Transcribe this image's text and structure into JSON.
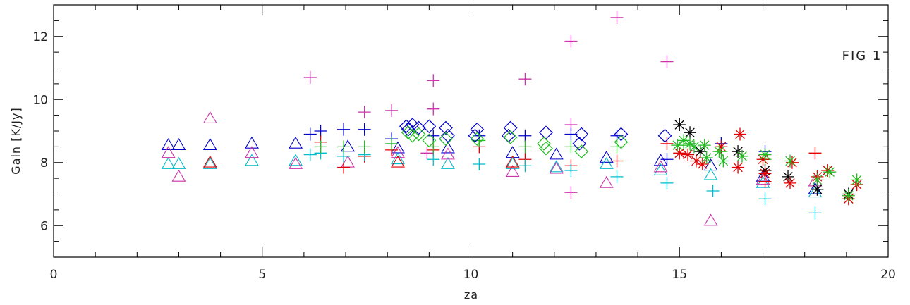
{
  "chart_data": {
    "type": "scatter",
    "title": "",
    "xlabel": "za",
    "ylabel": "Gain [K/Jy]",
    "xlim": [
      0,
      20
    ],
    "ylim": [
      5,
      13
    ],
    "x_ticks": [
      0,
      5,
      10,
      15,
      20
    ],
    "y_ticks": [
      6,
      8,
      10,
      12
    ],
    "grid": false,
    "annotations": [
      {
        "text": "FIG   1"
      }
    ],
    "colors": {
      "blue": "#0000cc",
      "red": "#e00000",
      "green": "#22bb22",
      "magenta": "#cc33aa",
      "cyan": "#00bbcc",
      "black": "#000000",
      "axis": "#000000"
    },
    "series": [
      {
        "marker": "triangle",
        "color": "blue",
        "points": [
          [
            2.75,
            8.55
          ],
          [
            3.0,
            8.55
          ],
          [
            3.75,
            8.55
          ],
          [
            4.75,
            8.6
          ],
          [
            5.8,
            8.6
          ],
          [
            7.05,
            8.5
          ],
          [
            8.25,
            8.45
          ],
          [
            9.45,
            8.45
          ],
          [
            11.0,
            8.3
          ],
          [
            12.05,
            8.25
          ],
          [
            13.25,
            8.15
          ],
          [
            14.55,
            8.05
          ],
          [
            15.75,
            7.9
          ],
          [
            17.0,
            7.55
          ],
          [
            18.25,
            7.15
          ]
        ]
      },
      {
        "marker": "triangle",
        "color": "cyan",
        "points": [
          [
            2.75,
            7.95
          ],
          [
            3.0,
            7.95
          ],
          [
            3.75,
            7.95
          ],
          [
            4.75,
            8.05
          ],
          [
            5.8,
            8.05
          ],
          [
            8.25,
            8.1
          ],
          [
            9.45,
            7.95
          ],
          [
            11.0,
            7.95
          ],
          [
            12.05,
            7.85
          ],
          [
            13.25,
            7.95
          ],
          [
            14.55,
            7.75
          ],
          [
            15.75,
            7.6
          ],
          [
            17.0,
            7.35
          ],
          [
            18.25,
            7.05
          ]
        ]
      },
      {
        "marker": "triangle",
        "color": "magenta",
        "points": [
          [
            2.75,
            8.3
          ],
          [
            3.0,
            7.55
          ],
          [
            3.75,
            9.4
          ],
          [
            4.75,
            8.3
          ],
          [
            5.8,
            7.95
          ],
          [
            7.05,
            8.0
          ],
          [
            8.25,
            8.3
          ],
          [
            9.45,
            8.25
          ],
          [
            11.0,
            7.7
          ],
          [
            12.05,
            7.8
          ],
          [
            13.25,
            7.35
          ],
          [
            14.55,
            7.85
          ],
          [
            15.75,
            6.15
          ],
          [
            17.0,
            7.45
          ],
          [
            18.25,
            7.4
          ]
        ]
      },
      {
        "marker": "triangle",
        "color": "red",
        "points": [
          [
            3.75,
            8.0
          ],
          [
            8.25,
            8.0
          ],
          [
            11.0,
            8.0
          ]
        ]
      },
      {
        "marker": "plus",
        "color": "magenta",
        "points": [
          [
            6.15,
            10.7
          ],
          [
            9.1,
            10.6
          ],
          [
            9.1,
            9.7
          ],
          [
            11.3,
            10.65
          ],
          [
            12.4,
            11.85
          ],
          [
            13.5,
            12.6
          ],
          [
            14.7,
            11.2
          ],
          [
            7.45,
            9.6
          ],
          [
            8.1,
            9.65
          ],
          [
            12.4,
            7.05
          ],
          [
            8.95,
            8.3
          ],
          [
            12.4,
            9.2
          ]
        ]
      },
      {
        "marker": "plus",
        "color": "blue",
        "points": [
          [
            6.15,
            8.9
          ],
          [
            6.4,
            9.0
          ],
          [
            6.95,
            9.05
          ],
          [
            7.45,
            9.05
          ],
          [
            8.1,
            8.75
          ],
          [
            9.1,
            8.85
          ],
          [
            10.2,
            8.85
          ],
          [
            11.3,
            8.85
          ],
          [
            12.4,
            8.9
          ],
          [
            13.5,
            8.85
          ],
          [
            14.7,
            8.1
          ],
          [
            16.0,
            8.6
          ],
          [
            17.05,
            8.35
          ]
        ]
      },
      {
        "marker": "plus",
        "color": "red",
        "points": [
          [
            6.4,
            8.65
          ],
          [
            6.95,
            7.85
          ],
          [
            7.45,
            8.2
          ],
          [
            8.1,
            8.4
          ],
          [
            9.1,
            8.4
          ],
          [
            10.2,
            8.5
          ],
          [
            11.3,
            8.1
          ],
          [
            12.4,
            7.9
          ],
          [
            13.5,
            8.05
          ],
          [
            14.7,
            8.6
          ],
          [
            16.0,
            8.5
          ],
          [
            17.05,
            7.4
          ],
          [
            18.25,
            8.3
          ]
        ]
      },
      {
        "marker": "plus",
        "color": "cyan",
        "points": [
          [
            6.15,
            8.25
          ],
          [
            6.4,
            8.3
          ],
          [
            6.95,
            8.2
          ],
          [
            7.45,
            8.25
          ],
          [
            9.1,
            8.1
          ],
          [
            10.2,
            7.95
          ],
          [
            11.3,
            7.9
          ],
          [
            12.4,
            7.75
          ],
          [
            13.5,
            7.55
          ],
          [
            14.7,
            7.35
          ],
          [
            15.8,
            7.1
          ],
          [
            17.05,
            6.85
          ],
          [
            18.25,
            6.4
          ]
        ]
      },
      {
        "marker": "plus",
        "color": "green",
        "points": [
          [
            6.4,
            8.5
          ],
          [
            6.95,
            8.5
          ],
          [
            7.45,
            8.5
          ],
          [
            8.1,
            8.6
          ],
          [
            9.1,
            8.5
          ],
          [
            10.2,
            8.7
          ],
          [
            11.3,
            8.5
          ],
          [
            12.4,
            8.5
          ],
          [
            13.5,
            8.5
          ],
          [
            15.1,
            8.55
          ],
          [
            16.0,
            8.35
          ],
          [
            17.05,
            8.1
          ]
        ]
      },
      {
        "marker": "diamond",
        "color": "blue",
        "points": [
          [
            8.45,
            9.15
          ],
          [
            8.6,
            9.2
          ],
          [
            8.75,
            9.1
          ],
          [
            9.0,
            9.15
          ],
          [
            9.4,
            9.1
          ],
          [
            10.15,
            9.05
          ],
          [
            10.95,
            9.1
          ],
          [
            11.8,
            8.95
          ],
          [
            12.65,
            8.9
          ],
          [
            13.6,
            8.9
          ],
          [
            14.65,
            8.85
          ],
          [
            8.5,
            9.05
          ],
          [
            9.45,
            8.85
          ],
          [
            10.1,
            8.85
          ],
          [
            10.9,
            8.85
          ],
          [
            12.6,
            8.6
          ]
        ]
      },
      {
        "marker": "diamond",
        "color": "green",
        "points": [
          [
            8.5,
            8.95
          ],
          [
            8.75,
            8.9
          ],
          [
            9.0,
            8.7
          ],
          [
            9.4,
            8.75
          ],
          [
            10.15,
            8.75
          ],
          [
            10.95,
            8.8
          ],
          [
            11.8,
            8.45
          ],
          [
            12.65,
            8.35
          ],
          [
            13.6,
            8.65
          ],
          [
            8.6,
            8.85
          ],
          [
            11.75,
            8.6
          ]
        ]
      },
      {
        "marker": "star",
        "color": "black",
        "points": [
          [
            15.0,
            9.2
          ],
          [
            15.25,
            8.95
          ],
          [
            15.5,
            8.35
          ],
          [
            16.4,
            8.35
          ],
          [
            17.05,
            7.75
          ],
          [
            17.6,
            7.55
          ],
          [
            18.3,
            7.15
          ],
          [
            19.05,
            7.0
          ]
        ]
      },
      {
        "marker": "star",
        "color": "red",
        "points": [
          [
            15.0,
            8.3
          ],
          [
            15.2,
            8.25
          ],
          [
            15.4,
            8.05
          ],
          [
            15.55,
            7.95
          ],
          [
            16.0,
            8.5
          ],
          [
            16.45,
            8.9
          ],
          [
            16.4,
            7.85
          ],
          [
            17.0,
            8.1
          ],
          [
            17.05,
            7.65
          ],
          [
            17.7,
            8.0
          ],
          [
            17.65,
            7.35
          ],
          [
            18.3,
            7.55
          ],
          [
            18.55,
            7.75
          ],
          [
            19.05,
            6.85
          ],
          [
            19.25,
            7.3
          ]
        ]
      },
      {
        "marker": "star",
        "color": "green",
        "points": [
          [
            14.95,
            8.55
          ],
          [
            15.1,
            8.7
          ],
          [
            15.25,
            8.6
          ],
          [
            15.35,
            8.5
          ],
          [
            15.6,
            8.55
          ],
          [
            15.95,
            8.35
          ],
          [
            16.05,
            8.05
          ],
          [
            16.5,
            8.2
          ],
          [
            17.05,
            8.25
          ],
          [
            17.65,
            8.05
          ],
          [
            18.3,
            7.45
          ],
          [
            18.6,
            7.7
          ],
          [
            19.05,
            6.95
          ],
          [
            19.25,
            7.45
          ],
          [
            15.65,
            8.15
          ]
        ]
      }
    ]
  }
}
